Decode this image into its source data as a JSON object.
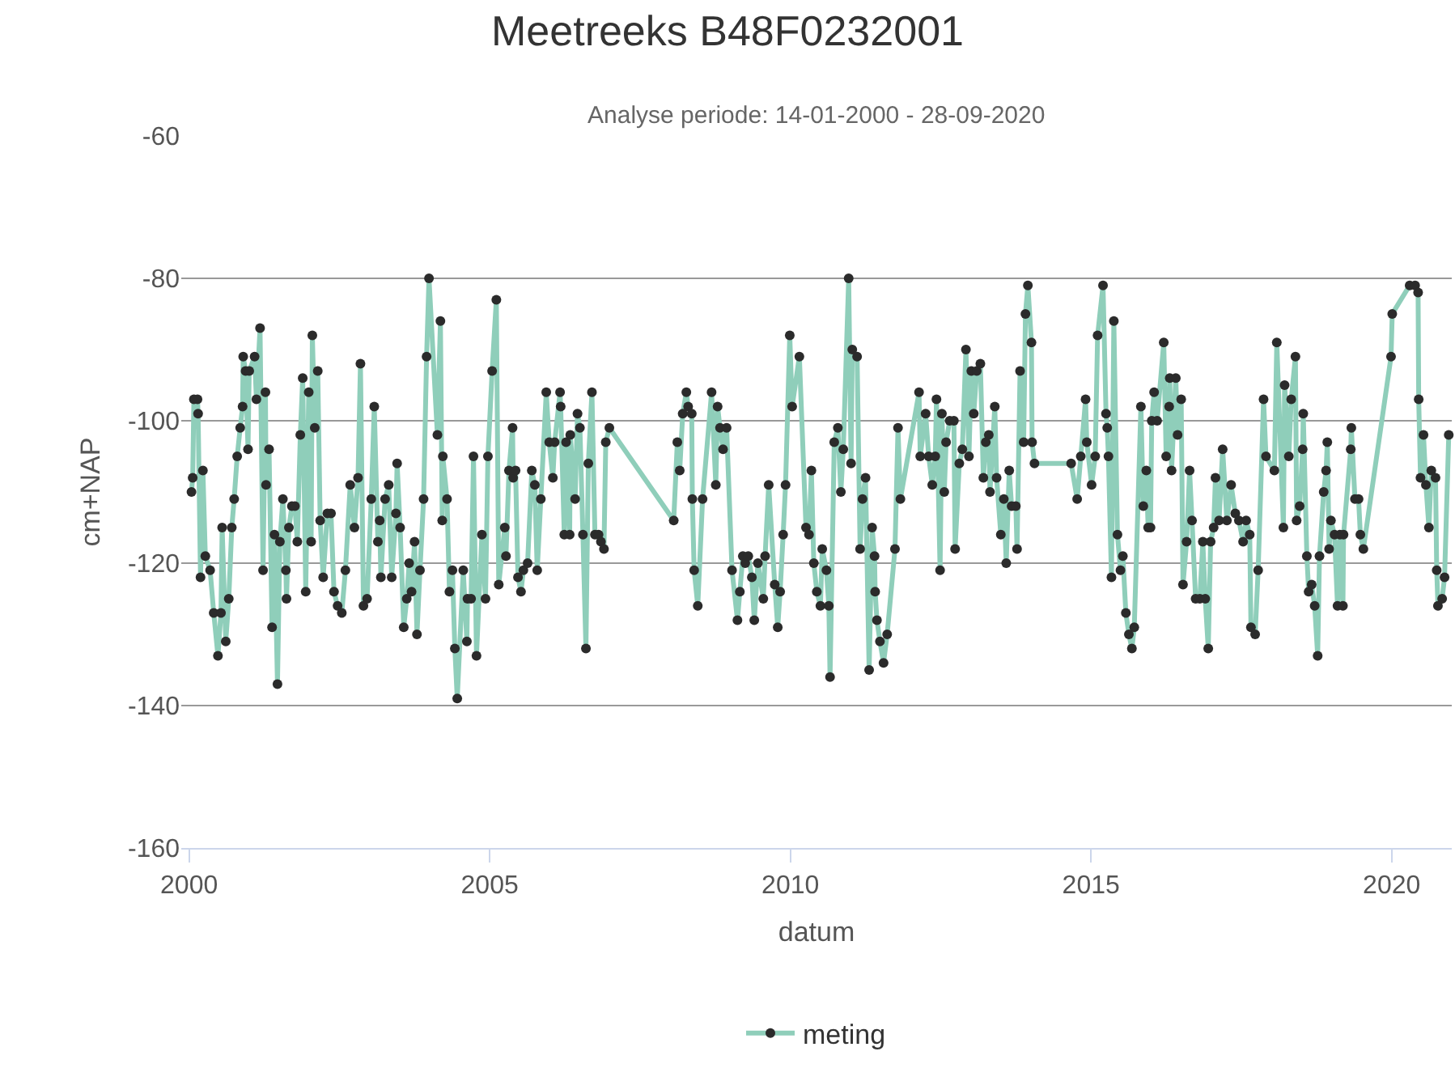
{
  "chart_data": {
    "type": "line",
    "title": "Meetreeks B48F0232001",
    "subtitle": "Analyse periode: 14-01-2000 - 28-09-2020",
    "xlabel": "datum",
    "ylabel": "cm+NAP",
    "xlim": [
      1999.87,
      2021.0
    ],
    "xticks": [
      2000,
      2005,
      2010,
      2015,
      2020
    ],
    "ylim": [
      -160,
      -60
    ],
    "yticks": [
      -160,
      -140,
      -120,
      -100,
      -80,
      -60
    ],
    "grid": "y",
    "legend": "bottom",
    "marker": "circle",
    "line_style": "solid",
    "x": [
      2000.04,
      2000.06,
      2000.08,
      2000.14,
      2000.15,
      2000.19,
      2000.23,
      2000.27,
      2000.35,
      2000.41,
      2000.48,
      2000.53,
      2000.55,
      2000.61,
      2000.66,
      2000.71,
      2000.75,
      2000.8,
      2000.85,
      2000.89,
      2000.9,
      2000.94,
      2000.98,
      2001.0,
      2001.09,
      2001.12,
      2001.18,
      2001.23,
      2001.27,
      2001.28,
      2001.33,
      2001.38,
      2001.42,
      2001.47,
      2001.51,
      2001.56,
      2001.61,
      2001.62,
      2001.66,
      2001.71,
      2001.76,
      2001.8,
      2001.85,
      2001.89,
      2001.94,
      2001.99,
      2002.03,
      2002.05,
      2002.09,
      2002.14,
      2002.18,
      2002.23,
      2002.3,
      2002.36,
      2002.41,
      2002.47,
      2002.54,
      2002.6,
      2002.68,
      2002.75,
      2002.81,
      2002.85,
      2002.9,
      2002.96,
      2003.03,
      2003.08,
      2003.14,
      2003.17,
      2003.19,
      2003.26,
      2003.32,
      2003.37,
      2003.44,
      2003.46,
      2003.51,
      2003.57,
      2003.62,
      2003.66,
      2003.7,
      2003.75,
      2003.79,
      2003.84,
      2003.9,
      2003.95,
      2003.99,
      2004.13,
      2004.18,
      2004.21,
      2004.22,
      2004.29,
      2004.33,
      2004.38,
      2004.42,
      2004.46,
      2004.56,
      2004.62,
      2004.63,
      2004.69,
      2004.73,
      2004.78,
      2004.87,
      2004.93,
      2004.97,
      2005.04,
      2005.11,
      2005.15,
      2005.25,
      2005.27,
      2005.32,
      2005.38,
      2005.39,
      2005.43,
      2005.47,
      2005.52,
      2005.56,
      2005.63,
      2005.7,
      2005.75,
      2005.79,
      2005.85,
      2005.94,
      2005.99,
      2006.05,
      2006.08,
      2006.17,
      2006.18,
      2006.24,
      2006.27,
      2006.33,
      2006.34,
      2006.42,
      2006.46,
      2006.5,
      2006.55,
      2006.6,
      2006.64,
      2006.7,
      2006.75,
      2006.81,
      2006.85,
      2006.9,
      2006.93,
      2006.99,
      2008.06,
      2008.12,
      2008.16,
      2008.21,
      2008.27,
      2008.3,
      2008.36,
      2008.37,
      2008.4,
      2008.46,
      2008.54,
      2008.69,
      2008.76,
      2008.79,
      2008.83,
      2008.88,
      2008.94,
      2009.03,
      2009.12,
      2009.16,
      2009.21,
      2009.25,
      2009.3,
      2009.36,
      2009.4,
      2009.46,
      2009.55,
      2009.58,
      2009.64,
      2009.74,
      2009.79,
      2009.83,
      2009.88,
      2009.92,
      2009.99,
      2010.03,
      2010.15,
      2010.26,
      2010.31,
      2010.35,
      2010.39,
      2010.44,
      2010.5,
      2010.53,
      2010.6,
      2010.64,
      2010.66,
      2010.73,
      2010.79,
      2010.84,
      2010.88,
      2010.97,
      2011.01,
      2011.03,
      2011.11,
      2011.16,
      2011.2,
      2011.25,
      2011.31,
      2011.36,
      2011.4,
      2011.41,
      2011.44,
      2011.49,
      2011.55,
      2011.61,
      2011.74,
      2011.79,
      2011.83,
      2012.14,
      2012.16,
      2012.25,
      2012.3,
      2012.36,
      2012.41,
      2012.43,
      2012.49,
      2012.52,
      2012.56,
      2012.59,
      2012.65,
      2012.72,
      2012.74,
      2012.81,
      2012.86,
      2012.92,
      2012.97,
      2013.01,
      2013.05,
      2013.1,
      2013.16,
      2013.21,
      2013.25,
      2013.3,
      2013.32,
      2013.4,
      2013.43,
      2013.5,
      2013.55,
      2013.59,
      2013.64,
      2013.68,
      2013.75,
      2013.77,
      2013.82,
      2013.88,
      2013.91,
      2013.95,
      2014.01,
      2014.02,
      2014.06,
      2014.67,
      2014.77,
      2014.83,
      2014.91,
      2014.93,
      2015.01,
      2015.07,
      2015.11,
      2015.2,
      2015.25,
      2015.27,
      2015.29,
      2015.34,
      2015.38,
      2015.44,
      2015.49,
      2015.53,
      2015.58,
      2015.63,
      2015.68,
      2015.72,
      2015.83,
      2015.87,
      2015.92,
      2015.95,
      2015.99,
      2016.01,
      2016.05,
      2016.1,
      2016.21,
      2016.25,
      2016.3,
      2016.31,
      2016.34,
      2016.41,
      2016.44,
      2016.5,
      2016.53,
      2016.59,
      2016.64,
      2016.68,
      2016.74,
      2016.81,
      2016.86,
      2016.9,
      2016.95,
      2016.99,
      2017.04,
      2017.07,
      2017.13,
      2017.19,
      2017.26,
      2017.33,
      2017.4,
      2017.46,
      2017.53,
      2017.58,
      2017.64,
      2017.66,
      2017.73,
      2017.78,
      2017.87,
      2017.91,
      2018.05,
      2018.09,
      2018.2,
      2018.22,
      2018.29,
      2018.33,
      2018.4,
      2018.42,
      2018.47,
      2018.52,
      2018.53,
      2018.59,
      2018.62,
      2018.67,
      2018.72,
      2018.77,
      2018.8,
      2018.87,
      2018.91,
      2018.93,
      2018.96,
      2018.99,
      2019.05,
      2019.1,
      2019.14,
      2019.19,
      2019.2,
      2019.32,
      2019.33,
      2019.39,
      2019.45,
      2019.48,
      2019.53,
      2019.99,
      2020.01,
      2020.3,
      2020.39,
      2020.44,
      2020.45,
      2020.48,
      2020.53,
      2020.57,
      2020.62,
      2020.66,
      2020.73,
      2020.75,
      2020.77,
      2020.84,
      2020.88,
      2020.95
    ],
    "series": [
      {
        "name": "meting",
        "color": "#8fceba",
        "values": [
          -110,
          -108,
          -97,
          -97,
          -99,
          -122,
          -107,
          -119,
          -121,
          -127,
          -133,
          -127,
          -115,
          -131,
          -125,
          -115,
          -111,
          -105,
          -101,
          -98,
          -91,
          -93,
          -104,
          -93,
          -91,
          -97,
          -87,
          -121,
          -96,
          -109,
          -104,
          -129,
          -116,
          -137,
          -117,
          -111,
          -121,
          -125,
          -115,
          -112,
          -112,
          -117,
          -102,
          -94,
          -124,
          -96,
          -117,
          -88,
          -101,
          -93,
          -114,
          -122,
          -113,
          -113,
          -124,
          -126,
          -127,
          -121,
          -109,
          -115,
          -108,
          -92,
          -126,
          -125,
          -111,
          -98,
          -117,
          -114,
          -122,
          -111,
          -109,
          -122,
          -113,
          -106,
          -115,
          -129,
          -125,
          -120,
          -124,
          -117,
          -130,
          -121,
          -111,
          -91,
          -80,
          -102,
          -86,
          -114,
          -105,
          -111,
          -124,
          -121,
          -132,
          -139,
          -121,
          -131,
          -125,
          -125,
          -105,
          -133,
          -116,
          -125,
          -105,
          -93,
          -83,
          -123,
          -115,
          -119,
          -107,
          -101,
          -108,
          -107,
          -122,
          -124,
          -121,
          -120,
          -107,
          -109,
          -121,
          -111,
          -96,
          -103,
          -108,
          -103,
          -96,
          -98,
          -116,
          -103,
          -116,
          -102,
          -111,
          -99,
          -101,
          -116,
          -132,
          -106,
          -96,
          -116,
          -116,
          -117,
          -118,
          -103,
          -101,
          -114,
          -103,
          -107,
          -99,
          -96,
          -98,
          -99,
          -111,
          -121,
          -126,
          -111,
          -96,
          -109,
          -98,
          -101,
          -104,
          -101,
          -121,
          -128,
          -124,
          -119,
          -120,
          -119,
          -122,
          -128,
          -120,
          -125,
          -119,
          -109,
          -123,
          -129,
          -124,
          -116,
          -109,
          -88,
          -98,
          -91,
          -115,
          -116,
          -107,
          -120,
          -124,
          -126,
          -118,
          -121,
          -126,
          -136,
          -103,
          -101,
          -110,
          -104,
          -80,
          -106,
          -90,
          -91,
          -118,
          -111,
          -108,
          -135,
          -115,
          -119,
          -124,
          -128,
          -131,
          -134,
          -130,
          -118,
          -101,
          -111,
          -96,
          -105,
          -99,
          -105,
          -109,
          -105,
          -97,
          -121,
          -99,
          -110,
          -103,
          -100,
          -100,
          -118,
          -106,
          -104,
          -90,
          -105,
          -93,
          -99,
          -93,
          -92,
          -108,
          -103,
          -102,
          -110,
          -98,
          -108,
          -116,
          -111,
          -120,
          -107,
          -112,
          -112,
          -118,
          -93,
          -103,
          -85,
          -81,
          -89,
          -103,
          -106,
          -106,
          -111,
          -105,
          -97,
          -103,
          -109,
          -105,
          -88,
          -81,
          -99,
          -101,
          -105,
          -122,
          -86,
          -116,
          -121,
          -119,
          -127,
          -130,
          -132,
          -129,
          -98,
          -112,
          -107,
          -115,
          -115,
          -100,
          -96,
          -100,
          -89,
          -105,
          -98,
          -94,
          -107,
          -94,
          -102,
          -97,
          -123,
          -117,
          -107,
          -114,
          -125,
          -125,
          -117,
          -125,
          -132,
          -117,
          -115,
          -108,
          -114,
          -104,
          -114,
          -109,
          -113,
          -114,
          -117,
          -114,
          -116,
          -129,
          -130,
          -121,
          -97,
          -105,
          -107,
          -89,
          -115,
          -95,
          -105,
          -97,
          -91,
          -114,
          -112,
          -104,
          -99,
          -119,
          -124,
          -123,
          -126,
          -133,
          -119,
          -110,
          -107,
          -103,
          -118,
          -114,
          -116,
          -126,
          -116,
          -126,
          -116,
          -104,
          -101,
          -111,
          -111,
          -116,
          -118,
          -91,
          -85,
          -81,
          -81,
          -82,
          -97,
          -108,
          -102,
          -109,
          -115,
          -107,
          -108,
          -121,
          -126,
          -125,
          -122,
          -102
        ]
      }
    ]
  }
}
